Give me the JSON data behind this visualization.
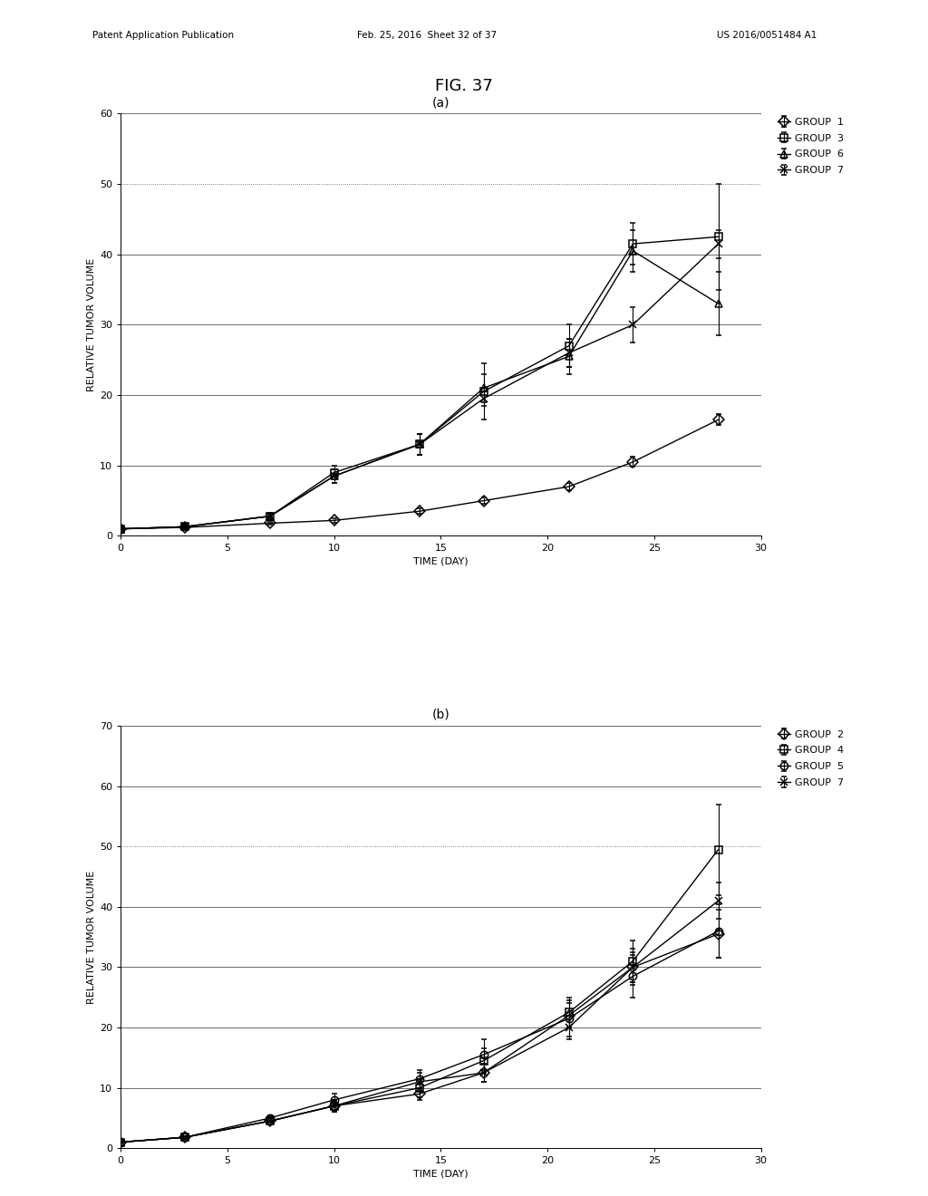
{
  "fig_title": "FIG. 37",
  "header_left": "Patent Application Publication",
  "header_mid": "Feb. 25, 2016  Sheet 32 of 37",
  "header_right": "US 2016/0051484 A1",
  "panel_a": {
    "label": "(a)",
    "xlabel": "TIME (DAY)",
    "ylabel": "RELATIVE TUMOR VOLUME",
    "ylim": [
      0,
      60
    ],
    "yticks": [
      0,
      10,
      20,
      30,
      40,
      50,
      60
    ],
    "xlim": [
      0,
      30
    ],
    "xticks": [
      0,
      5,
      10,
      15,
      20,
      25,
      30
    ],
    "solid_grid": [
      10,
      20,
      30,
      40,
      60
    ],
    "dotted_grid": [
      50
    ],
    "groups": [
      {
        "name": "GROUP  1",
        "marker": "D",
        "x": [
          0,
          3,
          7,
          10,
          14,
          17,
          21,
          24,
          28
        ],
        "y": [
          1.0,
          1.2,
          1.8,
          2.2,
          3.5,
          5.0,
          7.0,
          10.5,
          16.5
        ],
        "yerr": [
          0.1,
          0.15,
          0.2,
          0.3,
          0.4,
          0.4,
          0.5,
          0.7,
          0.8
        ]
      },
      {
        "name": "GROUP  3",
        "marker": "s",
        "x": [
          0,
          3,
          7,
          10,
          14,
          17,
          21,
          24,
          28
        ],
        "y": [
          1.0,
          1.3,
          2.8,
          9.0,
          13.0,
          20.5,
          27.0,
          41.5,
          42.5
        ],
        "yerr": [
          0.1,
          0.2,
          0.5,
          1.0,
          1.5,
          4.0,
          3.0,
          3.0,
          7.5
        ]
      },
      {
        "name": "GROUP  6",
        "marker": "^",
        "x": [
          0,
          3,
          7,
          10,
          14,
          17,
          21,
          24,
          28
        ],
        "y": [
          1.0,
          1.3,
          2.8,
          8.5,
          13.0,
          21.0,
          25.5,
          40.5,
          33.0
        ],
        "yerr": [
          0.1,
          0.2,
          0.5,
          1.0,
          1.5,
          2.0,
          2.5,
          3.0,
          4.5
        ]
      },
      {
        "name": "GROUP  7",
        "marker": "x",
        "x": [
          0,
          3,
          7,
          10,
          14,
          17,
          21,
          24,
          28
        ],
        "y": [
          1.0,
          1.3,
          2.8,
          8.5,
          13.0,
          19.5,
          26.0,
          30.0,
          41.5
        ],
        "yerr": [
          0.1,
          0.2,
          0.5,
          1.0,
          1.5,
          1.0,
          2.0,
          2.5,
          2.0
        ]
      }
    ]
  },
  "panel_b": {
    "label": "(b)",
    "xlabel": "TIME (DAY)",
    "ylabel": "RELATIVE TUMOR VOLUME",
    "ylim": [
      0,
      70
    ],
    "yticks": [
      0,
      10,
      20,
      30,
      40,
      50,
      60,
      70
    ],
    "xlim": [
      0,
      30
    ],
    "xticks": [
      0,
      5,
      10,
      15,
      20,
      25,
      30
    ],
    "solid_grid": [
      10,
      20,
      30,
      40,
      60,
      70
    ],
    "dotted_grid": [
      50
    ],
    "groups": [
      {
        "name": "GROUP  2",
        "marker": "D",
        "x": [
          0,
          3,
          7,
          10,
          14,
          17,
          21,
          24,
          28
        ],
        "y": [
          1.0,
          1.8,
          4.5,
          7.0,
          9.0,
          12.5,
          22.0,
          30.0,
          35.5
        ],
        "yerr": [
          0.1,
          0.2,
          0.5,
          0.8,
          1.0,
          1.5,
          2.0,
          3.0,
          4.0
        ]
      },
      {
        "name": "GROUP  4",
        "marker": "s",
        "x": [
          0,
          3,
          7,
          10,
          14,
          17,
          21,
          24,
          28
        ],
        "y": [
          1.0,
          1.8,
          4.5,
          7.0,
          10.0,
          14.5,
          22.5,
          31.0,
          49.5
        ],
        "yerr": [
          0.1,
          0.2,
          0.5,
          1.0,
          1.5,
          2.0,
          2.5,
          3.5,
          7.5
        ]
      },
      {
        "name": "GROUP  5",
        "marker": "o",
        "x": [
          0,
          3,
          7,
          10,
          14,
          17,
          21,
          24,
          28
        ],
        "y": [
          1.0,
          1.8,
          5.0,
          8.0,
          11.5,
          15.5,
          21.5,
          28.5,
          36.0
        ],
        "yerr": [
          0.1,
          0.2,
          0.5,
          1.0,
          1.5,
          2.5,
          3.0,
          3.5,
          4.5
        ]
      },
      {
        "name": "GROUP  7",
        "marker": "x",
        "x": [
          0,
          3,
          7,
          10,
          14,
          17,
          21,
          24,
          28
        ],
        "y": [
          1.0,
          1.8,
          4.5,
          7.0,
          11.0,
          12.5,
          20.0,
          30.0,
          41.0
        ],
        "yerr": [
          0.1,
          0.2,
          0.5,
          1.0,
          1.5,
          1.5,
          2.0,
          2.5,
          3.0
        ]
      }
    ]
  },
  "line_color": "#000000",
  "markersize": 6,
  "linewidth": 1.0,
  "capsize": 2,
  "elinewidth": 0.8,
  "background_color": "#ffffff",
  "axis_fontsize": 8,
  "legend_fontsize": 8,
  "title_fontsize": 13
}
